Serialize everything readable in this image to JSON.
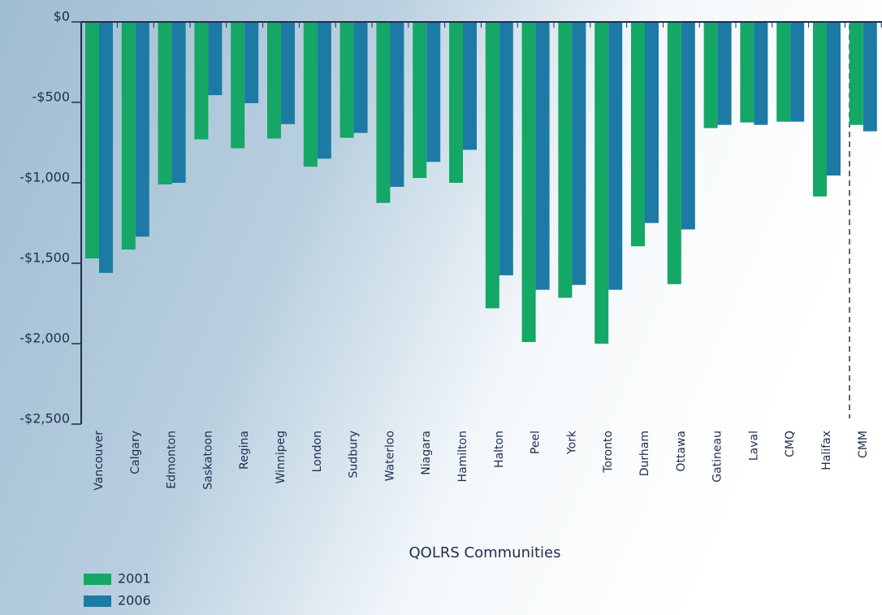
{
  "chart_data": {
    "type": "bar",
    "x_label": "QOLRS Communities",
    "categories": [
      "Vancouver",
      "Calgary",
      "Edmonton",
      "Saskatoon",
      "Regina",
      "Winnipeg",
      "London",
      "Sudbury",
      "Waterloo",
      "Niagara",
      "Hamilton",
      "Halton",
      "Peel",
      "York",
      "Toronto",
      "Durham",
      "Ottawa",
      "Gatineau",
      "Laval",
      "CMQ",
      "Halifax",
      "CMM"
    ],
    "series": [
      {
        "name": "2001",
        "color": "#14a765",
        "values": [
          -1470,
          -1415,
          -1010,
          -730,
          -785,
          -725,
          -900,
          -720,
          -1125,
          -970,
          -1000,
          -1780,
          -1990,
          -1715,
          -2000,
          -1395,
          -1630,
          -660,
          -625,
          -620,
          -1085,
          -640
        ]
      },
      {
        "name": "2006",
        "color": "#1d7aa5",
        "values": [
          -1560,
          -1335,
          -1000,
          -455,
          -505,
          -635,
          -850,
          -690,
          -1025,
          -870,
          -795,
          -1575,
          -1665,
          -1635,
          -1665,
          -1250,
          -1290,
          -640,
          -640,
          -620,
          -955,
          -680
        ]
      }
    ],
    "ylim": [
      -2500,
      0
    ],
    "yticks": [
      {
        "value": 0,
        "label": "$0"
      },
      {
        "value": -500,
        "label": "-$500"
      },
      {
        "value": -1000,
        "label": "-$1,000"
      },
      {
        "value": -1500,
        "label": "-$1,500"
      },
      {
        "value": -2000,
        "label": "-$2,000"
      },
      {
        "value": -2500,
        "label": "-$2,500"
      }
    ]
  }
}
